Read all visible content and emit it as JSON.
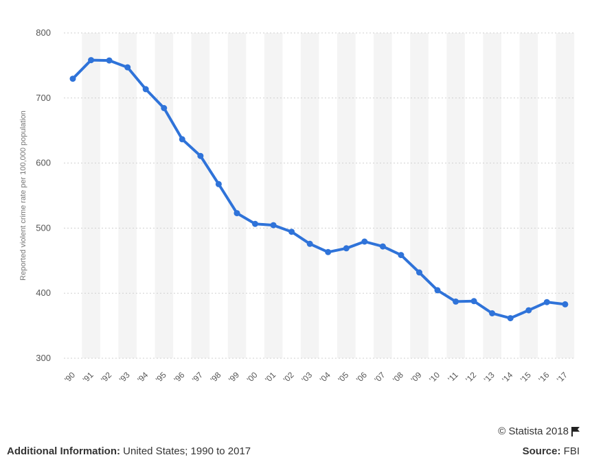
{
  "chart_data": {
    "type": "line",
    "categories": [
      "'90",
      "'91",
      "'92",
      "'93",
      "'94",
      "'95",
      "'96",
      "'97",
      "'98",
      "'99",
      "'00",
      "'01",
      "'02",
      "'03",
      "'04",
      "'05",
      "'06",
      "'07",
      "'08",
      "'09",
      "'10",
      "'11",
      "'12",
      "'13",
      "'14",
      "'15",
      "'16",
      "'17"
    ],
    "series": [
      {
        "values": [
          729.6,
          758.2,
          757.7,
          747.1,
          713.6,
          684.5,
          636.6,
          611.0,
          567.6,
          523.0,
          506.5,
          504.5,
          494.4,
          475.8,
          463.2,
          469.0,
          479.3,
          471.8,
          458.6,
          431.9,
          404.5,
          387.1,
          387.8,
          369.1,
          361.6,
          373.7,
          386.3,
          382.9
        ],
        "color": "#2f73d9"
      }
    ],
    "ylabel": "Reported violent crime rate per 100,000 population",
    "ylim": [
      300,
      800
    ],
    "yticks": [
      300,
      400,
      500,
      600,
      700,
      800
    ],
    "grid": true
  },
  "footer": {
    "additional_label": "Additional Information:",
    "additional_value": "United States; 1990 to 2017",
    "source_label": "Source:",
    "source_value": "FBI",
    "copyright": "© Statista 2018"
  },
  "icons": {
    "flag": "flag-icon"
  }
}
